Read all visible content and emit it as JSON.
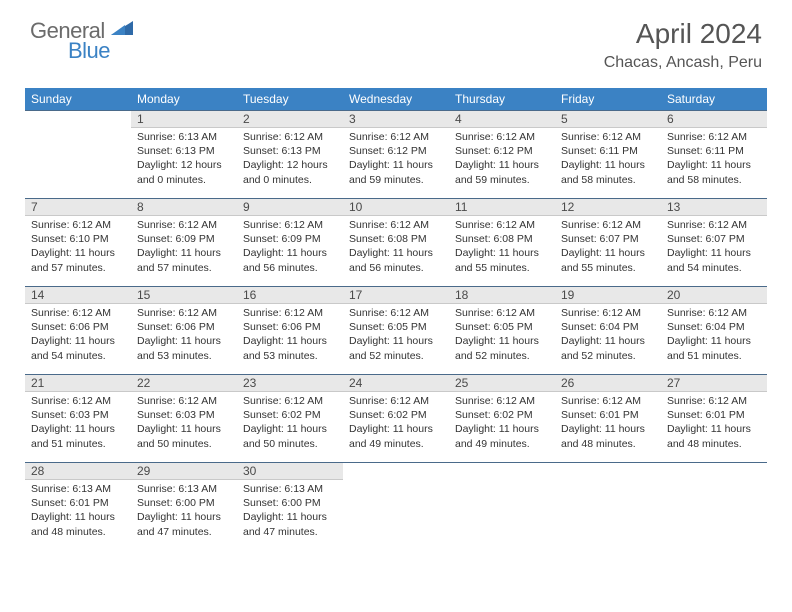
{
  "brand": {
    "general": "General",
    "blue": "Blue"
  },
  "title": "April 2024",
  "location": "Chacas, Ancash, Peru",
  "colors": {
    "header_bg": "#3b82c4",
    "header_text": "#ffffff",
    "daynum_bg": "#e8e8e8",
    "daynum_border_top": "#4a6a8a",
    "text": "#333333",
    "title_text": "#555555"
  },
  "weekdays": [
    "Sunday",
    "Monday",
    "Tuesday",
    "Wednesday",
    "Thursday",
    "Friday",
    "Saturday"
  ],
  "weeks": [
    [
      null,
      {
        "n": "1",
        "sr": "6:13 AM",
        "ss": "6:13 PM",
        "dl": "12 hours and 0 minutes."
      },
      {
        "n": "2",
        "sr": "6:12 AM",
        "ss": "6:13 PM",
        "dl": "12 hours and 0 minutes."
      },
      {
        "n": "3",
        "sr": "6:12 AM",
        "ss": "6:12 PM",
        "dl": "11 hours and 59 minutes."
      },
      {
        "n": "4",
        "sr": "6:12 AM",
        "ss": "6:12 PM",
        "dl": "11 hours and 59 minutes."
      },
      {
        "n": "5",
        "sr": "6:12 AM",
        "ss": "6:11 PM",
        "dl": "11 hours and 58 minutes."
      },
      {
        "n": "6",
        "sr": "6:12 AM",
        "ss": "6:11 PM",
        "dl": "11 hours and 58 minutes."
      }
    ],
    [
      {
        "n": "7",
        "sr": "6:12 AM",
        "ss": "6:10 PM",
        "dl": "11 hours and 57 minutes."
      },
      {
        "n": "8",
        "sr": "6:12 AM",
        "ss": "6:09 PM",
        "dl": "11 hours and 57 minutes."
      },
      {
        "n": "9",
        "sr": "6:12 AM",
        "ss": "6:09 PM",
        "dl": "11 hours and 56 minutes."
      },
      {
        "n": "10",
        "sr": "6:12 AM",
        "ss": "6:08 PM",
        "dl": "11 hours and 56 minutes."
      },
      {
        "n": "11",
        "sr": "6:12 AM",
        "ss": "6:08 PM",
        "dl": "11 hours and 55 minutes."
      },
      {
        "n": "12",
        "sr": "6:12 AM",
        "ss": "6:07 PM",
        "dl": "11 hours and 55 minutes."
      },
      {
        "n": "13",
        "sr": "6:12 AM",
        "ss": "6:07 PM",
        "dl": "11 hours and 54 minutes."
      }
    ],
    [
      {
        "n": "14",
        "sr": "6:12 AM",
        "ss": "6:06 PM",
        "dl": "11 hours and 54 minutes."
      },
      {
        "n": "15",
        "sr": "6:12 AM",
        "ss": "6:06 PM",
        "dl": "11 hours and 53 minutes."
      },
      {
        "n": "16",
        "sr": "6:12 AM",
        "ss": "6:06 PM",
        "dl": "11 hours and 53 minutes."
      },
      {
        "n": "17",
        "sr": "6:12 AM",
        "ss": "6:05 PM",
        "dl": "11 hours and 52 minutes."
      },
      {
        "n": "18",
        "sr": "6:12 AM",
        "ss": "6:05 PM",
        "dl": "11 hours and 52 minutes."
      },
      {
        "n": "19",
        "sr": "6:12 AM",
        "ss": "6:04 PM",
        "dl": "11 hours and 52 minutes."
      },
      {
        "n": "20",
        "sr": "6:12 AM",
        "ss": "6:04 PM",
        "dl": "11 hours and 51 minutes."
      }
    ],
    [
      {
        "n": "21",
        "sr": "6:12 AM",
        "ss": "6:03 PM",
        "dl": "11 hours and 51 minutes."
      },
      {
        "n": "22",
        "sr": "6:12 AM",
        "ss": "6:03 PM",
        "dl": "11 hours and 50 minutes."
      },
      {
        "n": "23",
        "sr": "6:12 AM",
        "ss": "6:02 PM",
        "dl": "11 hours and 50 minutes."
      },
      {
        "n": "24",
        "sr": "6:12 AM",
        "ss": "6:02 PM",
        "dl": "11 hours and 49 minutes."
      },
      {
        "n": "25",
        "sr": "6:12 AM",
        "ss": "6:02 PM",
        "dl": "11 hours and 49 minutes."
      },
      {
        "n": "26",
        "sr": "6:12 AM",
        "ss": "6:01 PM",
        "dl": "11 hours and 48 minutes."
      },
      {
        "n": "27",
        "sr": "6:12 AM",
        "ss": "6:01 PM",
        "dl": "11 hours and 48 minutes."
      }
    ],
    [
      {
        "n": "28",
        "sr": "6:13 AM",
        "ss": "6:01 PM",
        "dl": "11 hours and 48 minutes."
      },
      {
        "n": "29",
        "sr": "6:13 AM",
        "ss": "6:00 PM",
        "dl": "11 hours and 47 minutes."
      },
      {
        "n": "30",
        "sr": "6:13 AM",
        "ss": "6:00 PM",
        "dl": "11 hours and 47 minutes."
      },
      null,
      null,
      null,
      null
    ]
  ],
  "labels": {
    "sunrise": "Sunrise:",
    "sunset": "Sunset:",
    "daylight": "Daylight:"
  }
}
